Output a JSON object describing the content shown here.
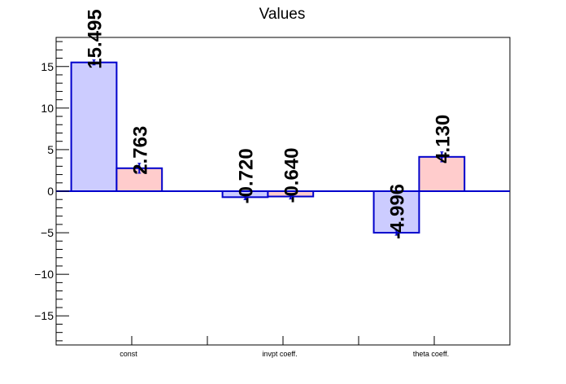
{
  "chart_data": {
    "type": "bar",
    "title": "Values",
    "xlabel": "",
    "ylabel": "",
    "categories": [
      "const",
      "invpt coeff.",
      "theta coeff."
    ],
    "ylim": [
      -18.5,
      18.5
    ],
    "yticks": [
      -15,
      -10,
      -5,
      0,
      5,
      10,
      15
    ],
    "grid": false,
    "series": [
      {
        "values": [
          15.495,
          -0.72,
          -4.996
        ],
        "labels": [
          "15.495",
          "-0.720",
          "-4.996"
        ],
        "errors": [
          0.3,
          0.3,
          0.3
        ],
        "fill": "#ccccff",
        "stroke": "#0000cc"
      },
      {
        "values": [
          2.763,
          -0.64,
          4.13
        ],
        "labels": [
          "2.763",
          "-0.640",
          "4.130"
        ],
        "errors": [
          0.6,
          0.3,
          0.6
        ],
        "fill": "#ffcccc",
        "stroke": "#0000cc"
      }
    ]
  }
}
